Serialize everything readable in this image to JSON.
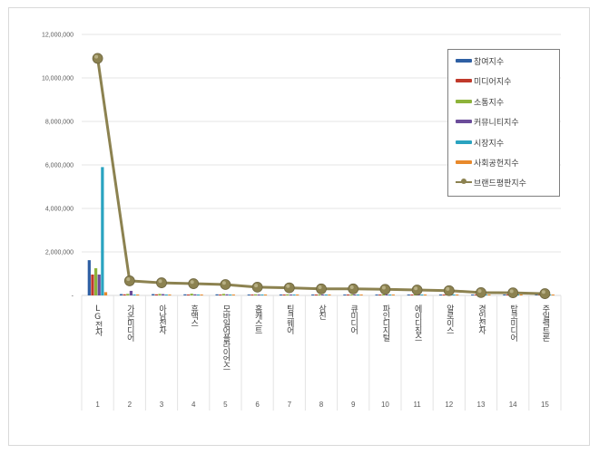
{
  "chart_data": {
    "type": "bar+line",
    "title": "",
    "xlabel": "",
    "ylabel": "",
    "ylim": [
      0,
      12000000
    ],
    "y_ticks": [
      "-",
      "2,000,000",
      "4,000,000",
      "6,000,000",
      "8,000,000",
      "10,000,000",
      "12,000,000"
    ],
    "y_tick_values": [
      0,
      2000000,
      4000000,
      6000000,
      8000000,
      10000000,
      12000000
    ],
    "grid": true,
    "legend_position": "upper-right",
    "categories": [
      "1",
      "2",
      "3",
      "4",
      "5",
      "6",
      "7",
      "8",
      "9",
      "10",
      "11",
      "12",
      "13",
      "14",
      "15"
    ],
    "category_names": [
      "LG전자",
      "가온미디어",
      "아남전자",
      "휴맥스",
      "모바일어플라이언스",
      "홈캐스트",
      "팅크웨어",
      "삼진",
      "큐미디어",
      "파인디지털",
      "에이디칩스",
      "알로이스",
      "경인전자",
      "탑코미디어",
      "주일렉트론"
    ],
    "series": [
      {
        "name": "참여지수",
        "type": "bar",
        "color": "#2e5fa3",
        "values": [
          1620000,
          60000,
          60000,
          50000,
          50000,
          40000,
          40000,
          35000,
          40000,
          30000,
          30000,
          25000,
          20000,
          20000,
          15000
        ]
      },
      {
        "name": "미디어지수",
        "type": "bar",
        "color": "#c0392b",
        "values": [
          960000,
          50000,
          50000,
          40000,
          40000,
          40000,
          35000,
          35000,
          35000,
          30000,
          30000,
          25000,
          20000,
          20000,
          15000
        ]
      },
      {
        "name": "소통지수",
        "type": "bar",
        "color": "#8db33a",
        "values": [
          1250000,
          70000,
          70000,
          80000,
          70000,
          50000,
          50000,
          45000,
          40000,
          35000,
          30000,
          30000,
          25000,
          20000,
          15000
        ]
      },
      {
        "name": "커뮤니티지수",
        "type": "bar",
        "color": "#6b4c9a",
        "values": [
          960000,
          210000,
          60000,
          50000,
          50000,
          40000,
          40000,
          40000,
          40000,
          30000,
          30000,
          25000,
          20000,
          20000,
          15000
        ]
      },
      {
        "name": "시장지수",
        "type": "bar",
        "color": "#2aa3c0",
        "values": [
          5900000,
          40000,
          30000,
          30000,
          30000,
          30000,
          25000,
          25000,
          25000,
          20000,
          20000,
          20000,
          15000,
          15000,
          10000
        ]
      },
      {
        "name": "사회공헌지수",
        "type": "bar",
        "color": "#e8892b",
        "values": [
          150000,
          10000,
          10000,
          10000,
          10000,
          10000,
          10000,
          10000,
          10000,
          10000,
          10000,
          10000,
          10000,
          10000,
          10000
        ]
      },
      {
        "name": "브랜드평판지수",
        "type": "line",
        "color": "#8c8250",
        "values": [
          10900000,
          670000,
          580000,
          540000,
          500000,
          380000,
          350000,
          300000,
          300000,
          280000,
          250000,
          220000,
          130000,
          120000,
          80000
        ]
      }
    ]
  },
  "legend": {
    "items": [
      {
        "label": "참여지수",
        "color": "#2e5fa3",
        "kind": "bar"
      },
      {
        "label": "미디어지수",
        "color": "#c0392b",
        "kind": "bar"
      },
      {
        "label": "소통지수",
        "color": "#8db33a",
        "kind": "bar"
      },
      {
        "label": "커뮤니티지수",
        "color": "#6b4c9a",
        "kind": "bar"
      },
      {
        "label": "시장지수",
        "color": "#2aa3c0",
        "kind": "bar"
      },
      {
        "label": "사회공헌지수",
        "color": "#e8892b",
        "kind": "bar"
      },
      {
        "label": "브랜드평판지수",
        "color": "#8c8250",
        "kind": "line"
      }
    ]
  }
}
